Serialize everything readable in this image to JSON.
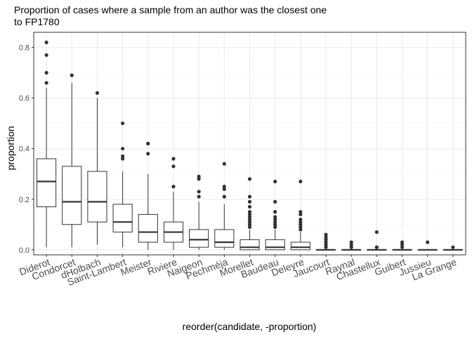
{
  "chart_data": {
    "type": "boxplot",
    "title": "Proportion of cases where a sample from an author was the closest one to FP1780",
    "title_lines": [
      "Proportion of cases where a sample from an author was the closest one",
      "to FP1780"
    ],
    "xlabel": "reorder(candidate, -proportion)",
    "ylabel": "proportion",
    "ylim": [
      -0.02,
      0.86
    ],
    "yticks": [
      0.0,
      0.2,
      0.4,
      0.6,
      0.8
    ],
    "ytick_labels": [
      "0.0",
      "0.2",
      "0.4",
      "0.6",
      "0.8"
    ],
    "grid": true,
    "legend": "none",
    "colors": {
      "box_outline": "#333333",
      "points": "#333333",
      "grid_major": "#ebebeb",
      "grid_minor": "#f5f5f5",
      "panel_border": "#333333"
    },
    "categories": [
      "Diderot",
      "Condorcet",
      "dHolbach",
      "Saint-Lambert",
      "Meister",
      "Riviere",
      "Naigeon",
      "Pechméja",
      "Morellet",
      "Baudeau",
      "Deleyre",
      "Jaucourt",
      "Raynal",
      "Chastellux",
      "Guibert",
      "Jussieu",
      "La Grange"
    ],
    "boxes": [
      {
        "q1": 0.17,
        "median": 0.27,
        "q3": 0.36,
        "whisker_low": 0.01,
        "whisker_high": 0.64,
        "outliers": [
          0.66,
          0.7,
          0.77,
          0.82
        ]
      },
      {
        "q1": 0.1,
        "median": 0.19,
        "q3": 0.33,
        "whisker_low": 0.01,
        "whisker_high": 0.66,
        "outliers": [
          0.69
        ]
      },
      {
        "q1": 0.11,
        "median": 0.19,
        "q3": 0.31,
        "whisker_low": 0.02,
        "whisker_high": 0.6,
        "outliers": [
          0.62
        ]
      },
      {
        "q1": 0.07,
        "median": 0.11,
        "q3": 0.18,
        "whisker_low": 0.01,
        "whisker_high": 0.31,
        "outliers": [
          0.36,
          0.37,
          0.4,
          0.5
        ]
      },
      {
        "q1": 0.03,
        "median": 0.07,
        "q3": 0.14,
        "whisker_low": 0.0,
        "whisker_high": 0.3,
        "outliers": [
          0.38,
          0.42,
          0.42
        ]
      },
      {
        "q1": 0.03,
        "median": 0.07,
        "q3": 0.11,
        "whisker_low": 0.0,
        "whisker_high": 0.23,
        "outliers": [
          0.25,
          0.33,
          0.36
        ]
      },
      {
        "q1": 0.01,
        "median": 0.04,
        "q3": 0.08,
        "whisker_low": 0.0,
        "whisker_high": 0.19,
        "outliers": [
          0.21,
          0.23,
          0.28,
          0.29
        ]
      },
      {
        "q1": 0.01,
        "median": 0.03,
        "q3": 0.08,
        "whisker_low": 0.0,
        "whisker_high": 0.18,
        "outliers": [
          0.21,
          0.24,
          0.25,
          0.34
        ]
      },
      {
        "q1": 0.0,
        "median": 0.01,
        "q3": 0.04,
        "whisker_low": 0.0,
        "whisker_high": 0.08,
        "outliers": [
          0.09,
          0.1,
          0.11,
          0.12,
          0.13,
          0.14,
          0.15,
          0.17,
          0.19,
          0.21,
          0.28
        ]
      },
      {
        "q1": 0.0,
        "median": 0.01,
        "q3": 0.04,
        "whisker_low": 0.0,
        "whisker_high": 0.08,
        "outliers": [
          0.09,
          0.1,
          0.11,
          0.12,
          0.13,
          0.15,
          0.19,
          0.27
        ]
      },
      {
        "q1": 0.0,
        "median": 0.01,
        "q3": 0.03,
        "whisker_low": 0.0,
        "whisker_high": 0.07,
        "outliers": [
          0.08,
          0.09,
          0.1,
          0.11,
          0.12,
          0.14,
          0.15,
          0.27
        ]
      },
      {
        "q1": 0.0,
        "median": 0.0,
        "q3": 0.0,
        "whisker_low": 0.0,
        "whisker_high": 0.0,
        "outliers": [
          0.01,
          0.02,
          0.03,
          0.04,
          0.05,
          0.06
        ]
      },
      {
        "q1": 0.0,
        "median": 0.0,
        "q3": 0.0,
        "whisker_low": 0.0,
        "whisker_high": 0.0,
        "outliers": [
          0.01,
          0.02,
          0.03
        ]
      },
      {
        "q1": 0.0,
        "median": 0.0,
        "q3": 0.0,
        "whisker_low": 0.0,
        "whisker_high": 0.0,
        "outliers": [
          0.01,
          0.01,
          0.07
        ]
      },
      {
        "q1": 0.0,
        "median": 0.0,
        "q3": 0.0,
        "whisker_low": 0.0,
        "whisker_high": 0.0,
        "outliers": [
          0.01,
          0.02,
          0.03
        ]
      },
      {
        "q1": 0.0,
        "median": 0.0,
        "q3": 0.0,
        "whisker_low": 0.0,
        "whisker_high": 0.0,
        "outliers": [
          0.03
        ]
      },
      {
        "q1": 0.0,
        "median": 0.0,
        "q3": 0.0,
        "whisker_low": 0.0,
        "whisker_high": 0.0,
        "outliers": [
          0.01
        ]
      }
    ]
  }
}
